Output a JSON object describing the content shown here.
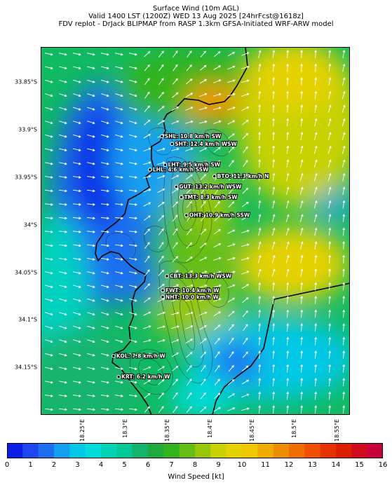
{
  "header": {
    "line1": "Surface Wind (10m AGL)",
    "line2": "Valid 1400 LST (1200Z) WED 13 Aug 2025 [24hrFcst@1618z]",
    "line3": "FDV replot - DrJack BLIPMAP from RASP 1.3km GFSA-Initiated WRF-ARW model"
  },
  "map": {
    "lat_ticks": [
      "33.85°S",
      "33.9°S",
      "33.95°S",
      "34°S",
      "34.05°S",
      "34.1°S",
      "34.15°S"
    ],
    "lon_ticks": [
      "18.25°E",
      "18.3°E",
      "18.35°E",
      "18.4°E",
      "18.45°E",
      "18.5°E",
      "18.55°E"
    ],
    "lat_range": [
      33.813,
      34.2
    ],
    "lon_range": [
      18.2,
      18.565
    ],
    "stations": [
      {
        "label": "SHL: 10.8 km/h SW",
        "lat": 33.907,
        "lon": 18.343
      },
      {
        "label": "SHT: 12.4 km/h WSW",
        "lat": 33.915,
        "lon": 18.355
      },
      {
        "label": "LHT: 9.5 km/h SW",
        "lat": 33.937,
        "lon": 18.347
      },
      {
        "label": "LHL: 4.6 km/h SSW",
        "lat": 33.942,
        "lon": 18.329
      },
      {
        "label": "BTO: 11.3 km/h N",
        "lat": 33.949,
        "lon": 18.405
      },
      {
        "label": "GUT: 13.2 km/h WSW",
        "lat": 33.96,
        "lon": 18.36
      },
      {
        "label": "TMT: 8.3 km/h SW",
        "lat": 33.971,
        "lon": 18.366
      },
      {
        "label": "OHT: 10.9 km/h SSW",
        "lat": 33.99,
        "lon": 18.372
      },
      {
        "label": "CBT: 13.3 km/h WSW",
        "lat": 34.054,
        "lon": 18.349
      },
      {
        "label": "FWT: 10.4 km/h W",
        "lat": 34.069,
        "lon": 18.344
      },
      {
        "label": "NHT: 10.0 km/h W",
        "lat": 34.076,
        "lon": 18.344
      },
      {
        "label": "KOL: 7.8 km/h W",
        "lat": 34.138,
        "lon": 18.286
      },
      {
        "label": "KRT: 6.2 km/h W",
        "lat": 34.16,
        "lon": 18.292
      }
    ]
  },
  "colorbar": {
    "label": "Wind Speed [kt]",
    "ticks": [
      "0",
      "1",
      "2",
      "3",
      "4",
      "5",
      "6",
      "7",
      "8",
      "9",
      "10",
      "11",
      "12",
      "13",
      "14",
      "15",
      "16"
    ],
    "colors": [
      "#0a1ee6",
      "#1e46f0",
      "#1e6ef0",
      "#14a0f0",
      "#00c8e6",
      "#00dcdc",
      "#00d2b4",
      "#00c896",
      "#14b46e",
      "#1eaa3c",
      "#32b41e",
      "#64be14",
      "#96c80a",
      "#c8d200",
      "#e6d200",
      "#f0c800",
      "#f0aa00",
      "#f08c00",
      "#f06e00",
      "#f05000",
      "#e63200",
      "#dc1e00",
      "#d20a1e",
      "#c8003c"
    ]
  }
}
